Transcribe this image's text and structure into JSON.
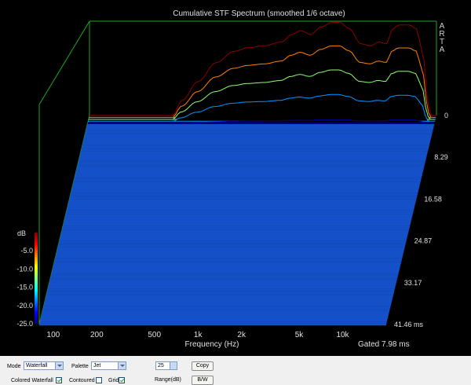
{
  "chart_data": {
    "type": "waterfall",
    "title": "Cumulative STF Spectrum (smoothed 1/6 octave)",
    "watermark": "ARTA",
    "xlabel": "Frequency (Hz)",
    "x_ticks": [
      "100",
      "200",
      "500",
      "1k",
      "2k",
      "5k",
      "10k"
    ],
    "x_tick_values": [
      100,
      200,
      500,
      1000,
      2000,
      5000,
      10000
    ],
    "xlim": [
      80,
      20000
    ],
    "x_scale": "log",
    "time_label": "Gated 7.98 ms",
    "time_ticks": [
      "0",
      "8.29",
      "16.58",
      "24.87",
      "33.17",
      "41.46 ms"
    ],
    "time_values": [
      0,
      8.29,
      16.58,
      24.87,
      33.17,
      41.46
    ],
    "zlabel": "dB",
    "z_ticks": [
      "-5.0",
      "-10.0",
      "-15.0",
      "-20.0",
      "-25.0"
    ],
    "z_values": [
      -5,
      -10,
      -15,
      -20,
      -25
    ],
    "zlim": [
      -25,
      0
    ],
    "grid": true,
    "colored": true,
    "palette": "Jet",
    "floor_color": "#1450c8",
    "first_slice": [
      {
        "f": 300,
        "db": -25
      },
      {
        "f": 350,
        "db": -21
      },
      {
        "f": 450,
        "db": -16
      },
      {
        "f": 600,
        "db": -11
      },
      {
        "f": 800,
        "db": -8
      },
      {
        "f": 1000,
        "db": -7
      },
      {
        "f": 1300,
        "db": -6.5
      },
      {
        "f": 1700,
        "db": -5.5
      },
      {
        "f": 2000,
        "db": -3.5
      },
      {
        "f": 2300,
        "db": -2.5
      },
      {
        "f": 2700,
        "db": -3.5
      },
      {
        "f": 3200,
        "db": -1.5
      },
      {
        "f": 3800,
        "db": -0.3
      },
      {
        "f": 4300,
        "db": -0.3
      },
      {
        "f": 5000,
        "db": -2
      },
      {
        "f": 6000,
        "db": -6
      },
      {
        "f": 7000,
        "db": -6.5
      },
      {
        "f": 8000,
        "db": -5.5
      },
      {
        "f": 9000,
        "db": -6
      },
      {
        "f": 10000,
        "db": -2
      },
      {
        "f": 11000,
        "db": -1
      },
      {
        "f": 13000,
        "db": -1
      },
      {
        "f": 14500,
        "db": -2
      },
      {
        "f": 16000,
        "db": -8
      },
      {
        "f": 17500,
        "db": -21
      },
      {
        "f": 18000,
        "db": -25
      }
    ]
  },
  "controls": {
    "mode_label": "Mode",
    "mode_value": "Waterfall",
    "palette_label": "Palette",
    "palette_value": "Jet",
    "range_value": "25",
    "range_label": "Range(dB)",
    "copy_label": "Copy",
    "bw_label": "B/W",
    "colored_waterfall_label": "Colored Waterfall",
    "contoured_label": "Contoured",
    "grid_label": "Grid"
  }
}
